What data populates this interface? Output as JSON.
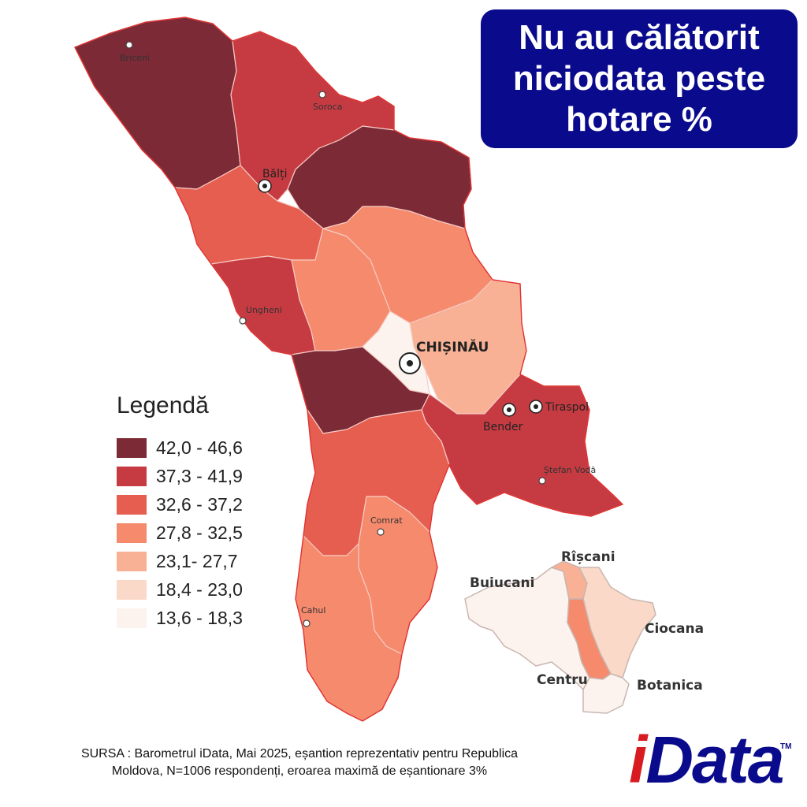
{
  "title": {
    "lines": [
      "Nu au călătorit",
      "niciodata peste",
      "hotare %"
    ]
  },
  "legend": {
    "title": "Legendă",
    "items": [
      {
        "label": "42,0 - 46,6",
        "color": "#7b2a36"
      },
      {
        "label": "37,3 - 41,9",
        "color": "#c63b42"
      },
      {
        "label": "32,6 - 37,2",
        "color": "#e55e50"
      },
      {
        "label": "27,8 - 32,5",
        "color": "#f58a6d"
      },
      {
        "label": "23,1- 27,7",
        "color": "#f8b195"
      },
      {
        "label": "18,4 - 23,0",
        "color": "#fbd9c8"
      },
      {
        "label": "13,6 - 18,3",
        "color": "#fdf3ee"
      }
    ]
  },
  "cities": {
    "briceni": "Briceni",
    "soroca": "Soroca",
    "balti": "Bălți",
    "ungheni": "Ungheni",
    "chisinau": "CHIȘINĂU",
    "bender": "Bender",
    "tiraspol": "Tiraspol",
    "stefan_voda": "Ștefan Vodă",
    "comrat": "Comrat",
    "cahul": "Cahul"
  },
  "inset": {
    "sectors": {
      "riscani": "Rîșcani",
      "buiucani": "Buiucani",
      "ciocana": "Ciocana",
      "centru": "Centru",
      "botanica": "Botanica"
    }
  },
  "source": {
    "line1": "SURSA : Barometrul iData, Mai 2025, eșantion reprezentativ pentru Republica",
    "line2": "Moldova, N=1006 respondenți, eroarea maximă de eșantionare 3%"
  },
  "logo": {
    "i": "i",
    "rest": "Data",
    "tm": "TM"
  }
}
